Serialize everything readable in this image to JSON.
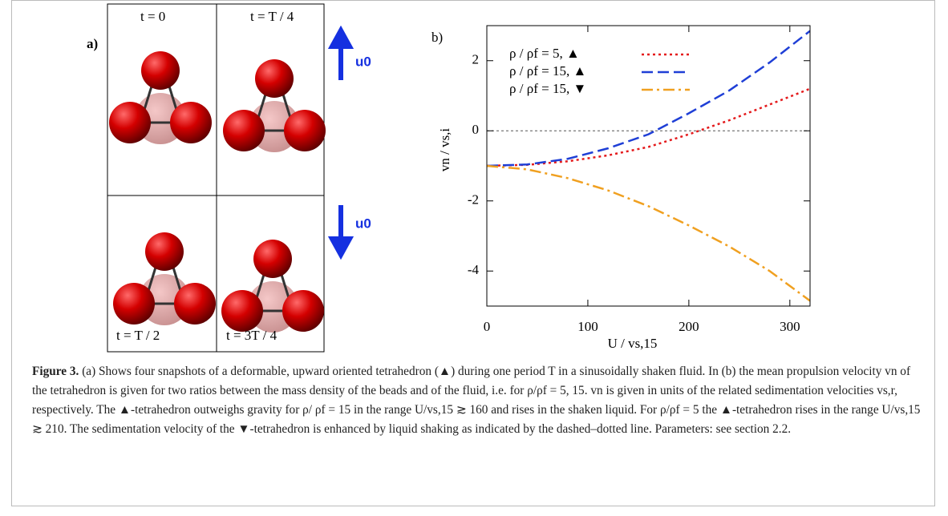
{
  "panel_a": {
    "label": "a)",
    "snapshots": [
      "t = 0",
      "t = T / 4",
      "t = T / 2",
      "t = 3T / 4"
    ],
    "arrow_label": "u0"
  },
  "chart_data": {
    "type": "line",
    "panel_label": "b)",
    "x_label": "U / vs,15",
    "y_label": "vn / vs,i",
    "x": [
      0,
      40,
      80,
      120,
      160,
      200,
      240,
      280,
      320
    ],
    "series": [
      {
        "name": "ρ / ρf = 5, ▲",
        "color": "#e41a1c",
        "dash": "3,4",
        "values": [
          -1,
          -0.97,
          -0.87,
          -0.7,
          -0.46,
          -0.1,
          0.3,
          0.75,
          1.2
        ]
      },
      {
        "name": "ρ / ρf = 15, ▲",
        "color": "#1f3fd6",
        "dash": "14,6",
        "values": [
          -1,
          -0.96,
          -0.8,
          -0.5,
          -0.1,
          0.5,
          1.15,
          1.95,
          2.85
        ]
      },
      {
        "name": "ρ / ρf = 15, ▼",
        "color": "#f0a020",
        "dash": "14,5,3,5",
        "values": [
          -1,
          -1.1,
          -1.35,
          -1.7,
          -2.15,
          -2.7,
          -3.3,
          -4.0,
          -4.85
        ]
      }
    ],
    "xlim": [
      0,
      320
    ],
    "xticks": [
      0,
      100,
      200,
      300
    ],
    "ylim": [
      -5,
      3
    ],
    "yticks": [
      -4,
      -2,
      0,
      2
    ]
  },
  "caption": {
    "label": "Figure 3.",
    "text": "(a) Shows four snapshots of a deformable, upward oriented tetrahedron (▲) during one period T in a sinusoidally shaken fluid. In (b) the mean propulsion velocity vn of the tetrahedron is given for two ratios between the mass density of the beads and of the fluid, i.e. for ρ/ρf = 5, 15. vn is given in units of the related sedimentation velocities vs,r, respectively. The ▲-tetrahedron outweighs gravity for ρ/ ρf = 15 in the range U/vs,15 ≳ 160 and rises in the shaken liquid. For ρ/ρf = 5 the ▲-tetrahedron rises in the range U/vs,15 ≳ 210. The sedimentation velocity of the ▼-tetrahedron is enhanced by liquid shaking as indicated by the dashed–dotted line. Parameters: see section 2.2."
  }
}
